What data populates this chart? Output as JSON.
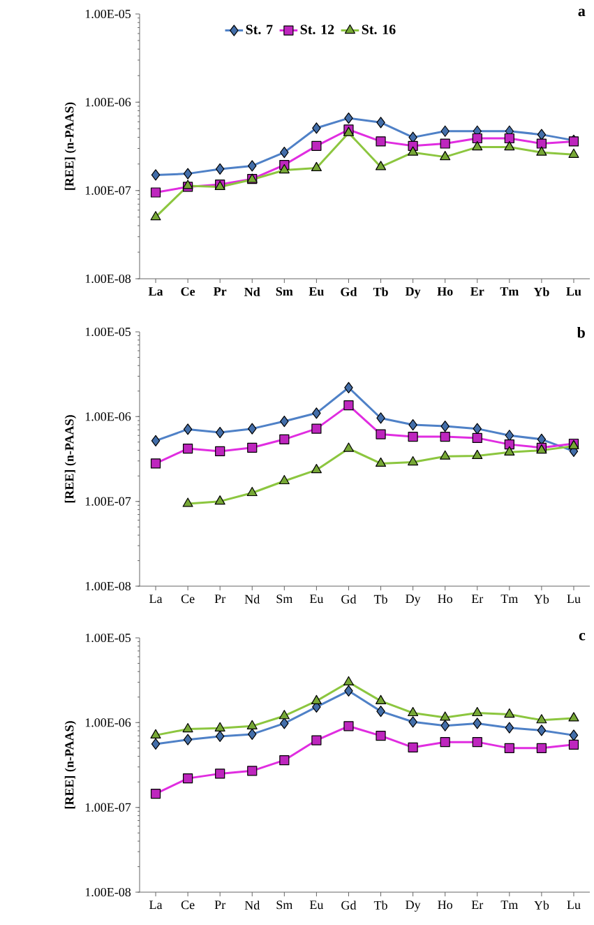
{
  "chart_data": [
    {
      "type": "line",
      "title": "a",
      "ylabel": "[REE] (n-PAAS)",
      "log": "y",
      "legend": "top",
      "grid": false,
      "categories": [
        "La",
        "Ce",
        "Pr",
        "Nd",
        "Sm",
        "Eu",
        "Gd",
        "Tb",
        "Dy",
        "Ho",
        "Er",
        "Tm",
        "Yb",
        "Lu"
      ],
      "ylim": [
        1e-08,
        1e-05
      ],
      "yticks": [
        {
          "value": 1e-08,
          "label": "1.00E-08"
        },
        {
          "value": 1e-07,
          "label": "1.00E-07"
        },
        {
          "value": 1e-06,
          "label": "1.00E-06"
        },
        {
          "value": 1e-05,
          "label": "1.00E-05"
        }
      ],
      "series": [
        {
          "name": "St. 7",
          "color": "#4f81c7",
          "marker": "diamond",
          "values": [
            1.5e-07,
            1.55e-07,
            1.75e-07,
            1.9e-07,
            2.7e-07,
            5.1e-07,
            6.6e-07,
            5.9e-07,
            4e-07,
            4.7e-07,
            4.7e-07,
            4.7e-07,
            4.3e-07,
            3.7e-07
          ]
        },
        {
          "name": "St. 12",
          "color": "#e02de0",
          "marker": "square",
          "values": [
            9.5e-08,
            1.1e-07,
            1.17e-07,
            1.35e-07,
            1.95e-07,
            3.2e-07,
            4.9e-07,
            3.6e-07,
            3.2e-07,
            3.4e-07,
            3.9e-07,
            3.9e-07,
            3.4e-07,
            3.6e-07
          ]
        },
        {
          "name": "St. 16",
          "color": "#8cc63f",
          "marker": "triangle",
          "values": [
            5e-08,
            1.13e-07,
            1.1e-07,
            1.33e-07,
            1.7e-07,
            1.8e-07,
            4.5e-07,
            1.85e-07,
            2.7e-07,
            2.4e-07,
            3.1e-07,
            3.1e-07,
            2.7e-07,
            2.55e-07
          ]
        }
      ]
    },
    {
      "type": "line",
      "title": "b",
      "ylabel": "[REE] (n-PAAS)",
      "log": "y",
      "grid": false,
      "categories": [
        "La",
        "Ce",
        "Pr",
        "Nd",
        "Sm",
        "Eu",
        "Gd",
        "Tb",
        "Dy",
        "Ho",
        "Er",
        "Tm",
        "Yb",
        "Lu"
      ],
      "ylim": [
        1e-08,
        1e-05
      ],
      "yticks": [
        {
          "value": 1e-08,
          "label": "1.00E-08"
        },
        {
          "value": 1e-07,
          "label": "1.00E-07"
        },
        {
          "value": 1e-06,
          "label": "1.00E-06"
        },
        {
          "value": 1e-05,
          "label": "1.00E-05"
        }
      ],
      "series": [
        {
          "color": "#4f81c7",
          "marker": "diamond",
          "values": [
            5.2e-07,
            7.1e-07,
            6.5e-07,
            7.2e-07,
            8.8e-07,
            1.1e-06,
            2.2e-06,
            9.6e-07,
            8e-07,
            7.7e-07,
            7.2e-07,
            6e-07,
            5.4e-07,
            3.9e-07
          ]
        },
        {
          "color": "#e02de0",
          "marker": "square",
          "values": [
            2.8e-07,
            4.2e-07,
            3.9e-07,
            4.3e-07,
            5.4e-07,
            7.2e-07,
            1.36e-06,
            6.2e-07,
            5.8e-07,
            5.8e-07,
            5.6e-07,
            4.7e-07,
            4.3e-07,
            4.8e-07
          ]
        },
        {
          "color": "#8cc63f",
          "marker": "triangle",
          "values": [
            null,
            9.4e-08,
            1e-07,
            1.26e-07,
            1.74e-07,
            2.35e-07,
            4.2e-07,
            2.8e-07,
            2.9e-07,
            3.4e-07,
            3.45e-07,
            3.8e-07,
            4e-07,
            4.5e-07
          ]
        }
      ]
    },
    {
      "type": "line",
      "title": "c",
      "ylabel": "[REE] (n-PAAS)",
      "log": "y",
      "grid": false,
      "categories": [
        "La",
        "Ce",
        "Pr",
        "Nd",
        "Sm",
        "Eu",
        "Gd",
        "Tb",
        "Dy",
        "Ho",
        "Er",
        "Tm",
        "Yb",
        "Lu"
      ],
      "ylim": [
        1e-08,
        1e-05
      ],
      "yticks": [
        {
          "value": 1e-08,
          "label": "1.00E-08"
        },
        {
          "value": 1e-07,
          "label": "1.00E-07"
        },
        {
          "value": 1e-06,
          "label": "1.00E-06"
        },
        {
          "value": 1e-05,
          "label": "1.00E-05"
        }
      ],
      "series": [
        {
          "color": "#4f81c7",
          "marker": "diamond",
          "values": [
            5.6e-07,
            6.3e-07,
            6.9e-07,
            7.3e-07,
            9.8e-07,
            1.53e-06,
            2.37e-06,
            1.36e-06,
            1.02e-06,
            9.2e-07,
            9.8e-07,
            8.7e-07,
            8.1e-07,
            7.1e-07
          ]
        },
        {
          "color": "#e02de0",
          "marker": "square",
          "values": [
            1.45e-07,
            2.2e-07,
            2.5e-07,
            2.7e-07,
            3.6e-07,
            6.2e-07,
            9.1e-07,
            7e-07,
            5.1e-07,
            5.9e-07,
            5.9e-07,
            5e-07,
            5e-07,
            5.5e-07
          ]
        },
        {
          "color": "#8cc63f",
          "marker": "triangle",
          "values": [
            7.1e-07,
            8.4e-07,
            8.6e-07,
            9.1e-07,
            1.2e-06,
            1.8e-06,
            3e-06,
            1.8e-06,
            1.3e-06,
            1.15e-06,
            1.3e-06,
            1.25e-06,
            1.07e-06,
            1.13e-06
          ]
        }
      ]
    }
  ]
}
